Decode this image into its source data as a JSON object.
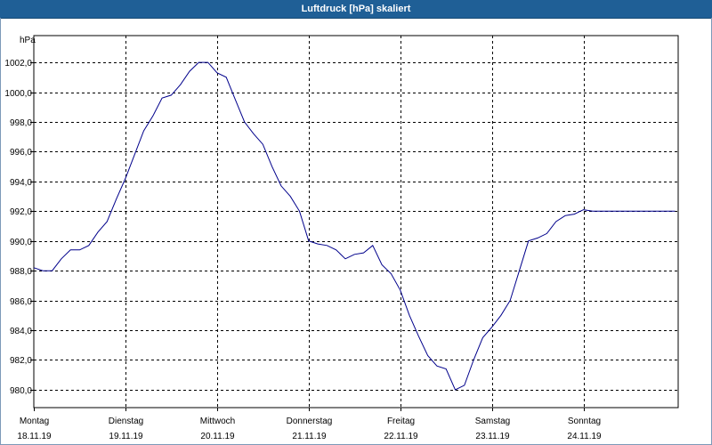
{
  "window": {
    "title": "Luftdruck [hPa] skaliert"
  },
  "colors": {
    "titlebar": "#1f5f96",
    "line": "#00008b",
    "grid": "#000000"
  },
  "chart_data": {
    "type": "line",
    "title": "Luftdruck [hPa] skaliert",
    "ylabel": "hPa",
    "xlabel": "",
    "ylim": [
      978.8,
      1003.8
    ],
    "xlim": [
      0,
      7.034
    ],
    "grid": true,
    "y_ticks": [
      980.0,
      982.0,
      984.0,
      986.0,
      988.0,
      990.0,
      992.0,
      994.0,
      996.0,
      998.0,
      1000.0,
      1002.0
    ],
    "y_tick_labels": [
      "980,0",
      "982,0",
      "984,0",
      "986,0",
      "988,0",
      "990,0",
      "992,0",
      "994,0",
      "996,0",
      "998,0",
      "1000,0",
      "1002,0"
    ],
    "x_ticks": [
      0,
      1,
      2,
      3,
      4,
      5,
      6
    ],
    "x_tick_labels": [
      {
        "day": "Montag",
        "date": "18.11.19"
      },
      {
        "day": "Dienstag",
        "date": "19.11.19"
      },
      {
        "day": "Mittwoch",
        "date": "20.11.19"
      },
      {
        "day": "Donnerstag",
        "date": "21.11.19"
      },
      {
        "day": "Freitag",
        "date": "22.11.19"
      },
      {
        "day": "Samstag",
        "date": "23.11.19"
      },
      {
        "day": "Sonntag",
        "date": "24.11.19"
      }
    ],
    "series": [
      {
        "name": "Luftdruck",
        "x": [
          0.0,
          0.1,
          0.2,
          0.3,
          0.4,
          0.5,
          0.6,
          0.7,
          0.8,
          0.9,
          1.0,
          1.1,
          1.2,
          1.3,
          1.4,
          1.5,
          1.6,
          1.7,
          1.8,
          1.9,
          2.0,
          2.1,
          2.2,
          2.3,
          2.4,
          2.5,
          2.6,
          2.7,
          2.8,
          2.9,
          3.0,
          3.1,
          3.2,
          3.3,
          3.4,
          3.5,
          3.6,
          3.7,
          3.8,
          3.9,
          4.0,
          4.1,
          4.2,
          4.3,
          4.4,
          4.5,
          4.6,
          4.7,
          4.8,
          4.9,
          5.0,
          5.1,
          5.2,
          5.3,
          5.4,
          5.5,
          5.6,
          5.7,
          5.8,
          5.9,
          6.0,
          6.1,
          6.2,
          6.3,
          6.4,
          6.5,
          6.6,
          6.7,
          6.8,
          6.9,
          7.0
        ],
        "values": [
          988.2,
          988.0,
          988.0,
          988.8,
          989.4,
          989.4,
          989.7,
          990.6,
          991.3,
          992.8,
          994.2,
          995.8,
          997.4,
          998.4,
          999.6,
          999.8,
          1000.5,
          1001.4,
          1002.0,
          1002.0,
          1001.3,
          1001.0,
          999.5,
          998.0,
          997.2,
          996.5,
          995.0,
          993.7,
          993.0,
          992.0,
          990.0,
          989.8,
          989.7,
          989.4,
          988.8,
          989.1,
          989.2,
          989.7,
          988.4,
          987.8,
          986.7,
          985.0,
          983.6,
          982.3,
          981.6,
          981.4,
          980.0,
          980.3,
          982.0,
          983.5,
          984.2,
          985.0,
          986.0,
          988.0,
          990.0,
          990.2,
          990.5,
          991.3,
          991.7,
          991.8,
          992.1,
          992.0,
          992.0,
          992.0,
          992.0,
          992.0,
          992.0,
          992.0,
          992.0,
          992.0,
          992.0
        ]
      }
    ]
  }
}
